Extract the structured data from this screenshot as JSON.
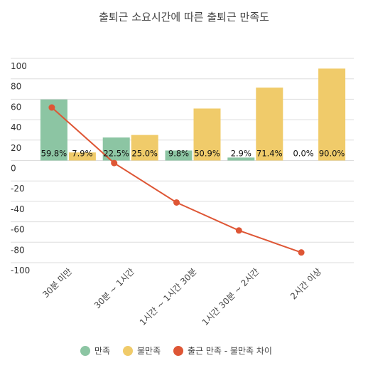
{
  "chart_data": {
    "type": "bar",
    "title": "출퇴근 소요시간에 따른 출퇴근 만족도",
    "categories": [
      "30분 미만",
      "30분 ~ 1시간",
      "1시간 ~ 1시간 30분",
      "1시간 30분 ~ 2시간",
      "2시간 이상"
    ],
    "ylim": [
      -100,
      100
    ],
    "yticks": [
      100,
      80,
      60,
      40,
      20,
      0,
      -20,
      -40,
      -60,
      -80,
      -100
    ],
    "grid": true,
    "legend_position": "bottom",
    "series": [
      {
        "name": "만족",
        "kind": "bar",
        "color": "#8cc5a3",
        "values": [
          59.8,
          22.5,
          9.8,
          2.9,
          0.0
        ],
        "labels": [
          "59.8%",
          "22.5%",
          "9.8%",
          "2.9%",
          "0.0%"
        ]
      },
      {
        "name": "불만족",
        "kind": "bar",
        "color": "#f0cb6a",
        "values": [
          7.9,
          25.0,
          50.9,
          71.4,
          90.0
        ],
        "labels": [
          "7.9%",
          "25.0%",
          "50.9%",
          "71.4%",
          "90.0%"
        ]
      },
      {
        "name": "출근 만족 - 불만족 차이",
        "kind": "line",
        "color": "#de5635",
        "values": [
          51.9,
          -2.5,
          -41.1,
          -68.5,
          -90.0
        ]
      }
    ]
  }
}
